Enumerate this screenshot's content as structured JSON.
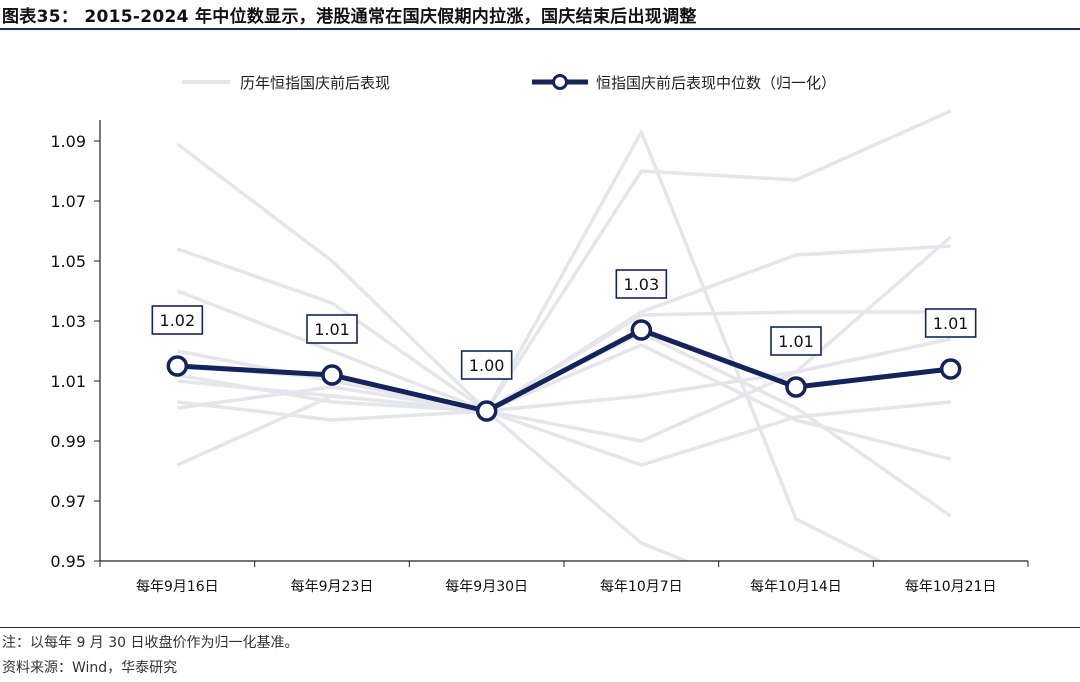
{
  "header": {
    "title": "图表35： 2015-2024 年中位数显示，港股通常在国庆假期内拉涨，国庆结束后出现调整"
  },
  "footer": {
    "note": "注：以每年 9 月 30 日收盘价作为归一化基准。",
    "source": "资料来源：Wind，华泰研究"
  },
  "colors": {
    "median": "#14245a",
    "history": "#e4e6ec",
    "axis": "#222222"
  },
  "chart_data": {
    "type": "line",
    "title": "",
    "xlabel": "",
    "ylabel": "",
    "categories": [
      "每年9月16日",
      "每年9月23日",
      "每年9月30日",
      "每年10月7日",
      "每年10月14日",
      "每年10月21日"
    ],
    "ylim": [
      0.95,
      1.09
    ],
    "yticks": [
      "1.09",
      "1.07",
      "1.05",
      "1.03",
      "1.01",
      "0.99",
      "0.97",
      "0.95"
    ],
    "legend_position": "top",
    "grid": false,
    "series": [
      {
        "name": "历年恒指国庆前后表现",
        "style": "history",
        "lines": [
          [
            1.089,
            1.05,
            1.0,
            1.093,
            0.964,
            0.938
          ],
          [
            1.054,
            1.036,
            1.0,
            0.956,
            0.935,
            0.93
          ],
          [
            1.04,
            1.02,
            1.0,
            1.08,
            1.077,
            1.1
          ],
          [
            1.01,
            1.005,
            1.0,
            1.033,
            1.052,
            1.055
          ],
          [
            1.003,
            0.997,
            1.0,
            1.032,
            1.033,
            1.033
          ],
          [
            0.982,
            1.005,
            1.0,
            1.005,
            1.013,
            1.024
          ],
          [
            1.001,
            1.008,
            1.0,
            0.982,
            0.998,
            1.003
          ],
          [
            1.012,
            1.003,
            1.0,
            0.99,
            1.013,
            1.058
          ],
          [
            1.015,
            1.011,
            1.0,
            1.022,
            0.997,
            0.984
          ],
          [
            1.02,
            1.01,
            1.0,
            1.026,
            1.001,
            0.965
          ]
        ]
      },
      {
        "name": "恒指国庆前后表现中位数（归一化）",
        "style": "median",
        "values": [
          1.015,
          1.012,
          1.0,
          1.027,
          1.008,
          1.014
        ],
        "labels": [
          "1.02",
          "1.01",
          "1.00",
          "1.03",
          "1.01",
          "1.01"
        ]
      }
    ]
  }
}
